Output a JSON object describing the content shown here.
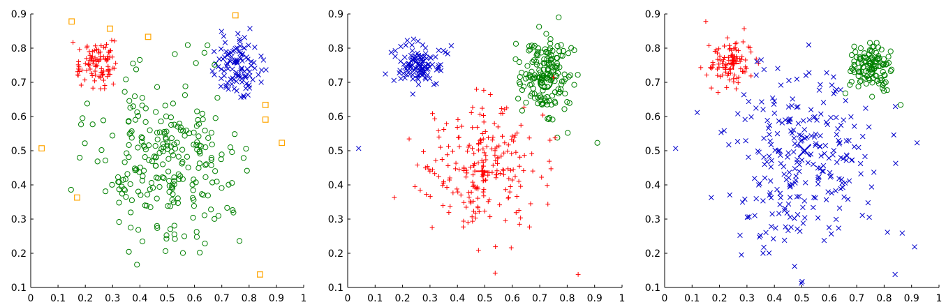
{
  "chart_data": [
    {
      "type": "scatter",
      "xlim": [
        0,
        1
      ],
      "ylim": [
        0.1,
        0.9
      ],
      "xticks": [
        "0",
        "0.1",
        "0.2",
        "0.3",
        "0.4",
        "0.5",
        "0.6",
        "0.7",
        "0.8",
        "0.9",
        "1"
      ],
      "yticks": [
        "0.1",
        "0.2",
        "0.3",
        "0.4",
        "0.5",
        "0.6",
        "0.7",
        "0.8",
        "0.9"
      ],
      "grid": false,
      "clusters": [
        {
          "color": "#ff0000",
          "marker": "plus",
          "center": [
            0.24,
            0.755
          ],
          "spread": [
            0.038,
            0.032
          ],
          "n": 100
        },
        {
          "color": "#0000cc",
          "marker": "cross",
          "center": [
            0.76,
            0.745
          ],
          "spread": [
            0.045,
            0.04
          ],
          "n": 110
        },
        {
          "color": "#008000",
          "marker": "circle",
          "center": [
            0.5,
            0.48
          ],
          "spread": [
            0.125,
            0.12
          ],
          "n": 260
        }
      ],
      "outliers": {
        "color": "#ffa500",
        "marker": "square",
        "points": [
          [
            0.15,
            0.878
          ],
          [
            0.29,
            0.857
          ],
          [
            0.43,
            0.833
          ],
          [
            0.75,
            0.896
          ],
          [
            0.86,
            0.634
          ],
          [
            0.86,
            0.591
          ],
          [
            0.92,
            0.523
          ],
          [
            0.04,
            0.507
          ],
          [
            0.17,
            0.363
          ],
          [
            0.84,
            0.138
          ]
        ]
      }
    },
    {
      "type": "scatter",
      "xlim": [
        0,
        1
      ],
      "ylim": [
        0.1,
        0.9
      ],
      "xticks": [
        "0",
        "0.1",
        "0.2",
        "0.3",
        "0.4",
        "0.5",
        "0.6",
        "0.7",
        "0.8",
        "0.9",
        "1"
      ],
      "yticks": [
        "0.1",
        "0.2",
        "0.3",
        "0.4",
        "0.5",
        "0.6",
        "0.7",
        "0.8",
        "0.9"
      ],
      "grid": false,
      "clusters": [
        {
          "color": "#0000cc",
          "marker": "cross",
          "center": [
            0.26,
            0.75
          ],
          "spread": [
            0.04,
            0.035
          ],
          "n": 110,
          "centroid": [
            0.26,
            0.75
          ]
        },
        {
          "color": "#008000",
          "marker": "circle",
          "center": [
            0.72,
            0.72
          ],
          "spread": [
            0.045,
            0.06
          ],
          "n": 170,
          "centroid": [
            0.72,
            0.7
          ]
        },
        {
          "color": "#ff0000",
          "marker": "plus",
          "center": [
            0.5,
            0.45
          ],
          "spread": [
            0.11,
            0.1
          ],
          "n": 230,
          "centroid": [
            0.49,
            0.44
          ]
        }
      ],
      "extra_points": [
        {
          "color": "#0000cc",
          "marker": "cross",
          "x": 0.04,
          "y": 0.507
        },
        {
          "color": "#008000",
          "marker": "circle",
          "x": 0.91,
          "y": 0.523
        },
        {
          "color": "#ff0000",
          "marker": "plus",
          "x": 0.17,
          "y": 0.363
        },
        {
          "color": "#ff0000",
          "marker": "plus",
          "x": 0.84,
          "y": 0.138
        }
      ]
    },
    {
      "type": "scatter",
      "xlim": [
        0,
        1
      ],
      "ylim": [
        0.1,
        0.9
      ],
      "xticks": [
        "0",
        "0.1",
        "0.2",
        "0.3",
        "0.4",
        "0.5",
        "0.6",
        "0.7",
        "0.8",
        "0.9",
        "1"
      ],
      "yticks": [
        "0.1",
        "0.2",
        "0.3",
        "0.4",
        "0.5",
        "0.6",
        "0.7",
        "0.8",
        "0.9"
      ],
      "grid": false,
      "clusters": [
        {
          "color": "#ff0000",
          "marker": "plus",
          "center": [
            0.24,
            0.755
          ],
          "spread": [
            0.038,
            0.032
          ],
          "n": 100,
          "centroid": [
            0.25,
            0.755
          ]
        },
        {
          "color": "#008000",
          "marker": "circle",
          "center": [
            0.75,
            0.745
          ],
          "spread": [
            0.04,
            0.04
          ],
          "n": 110,
          "centroid": [
            0.74,
            0.735
          ]
        },
        {
          "color": "#0000cc",
          "marker": "cross",
          "center": [
            0.5,
            0.48
          ],
          "spread": [
            0.13,
            0.125
          ],
          "n": 270,
          "centroid": [
            0.51,
            0.5
          ]
        }
      ],
      "extra_points": [
        {
          "color": "#ff0000",
          "marker": "plus",
          "x": 0.15,
          "y": 0.878
        },
        {
          "color": "#ff0000",
          "marker": "plus",
          "x": 0.29,
          "y": 0.857
        },
        {
          "color": "#0000cc",
          "marker": "cross",
          "x": 0.04,
          "y": 0.507
        },
        {
          "color": "#0000cc",
          "marker": "cross",
          "x": 0.92,
          "y": 0.523
        },
        {
          "color": "#0000cc",
          "marker": "cross",
          "x": 0.17,
          "y": 0.363
        },
        {
          "color": "#0000cc",
          "marker": "cross",
          "x": 0.84,
          "y": 0.138
        },
        {
          "color": "#008000",
          "marker": "circle",
          "x": 0.86,
          "y": 0.634
        }
      ]
    }
  ]
}
